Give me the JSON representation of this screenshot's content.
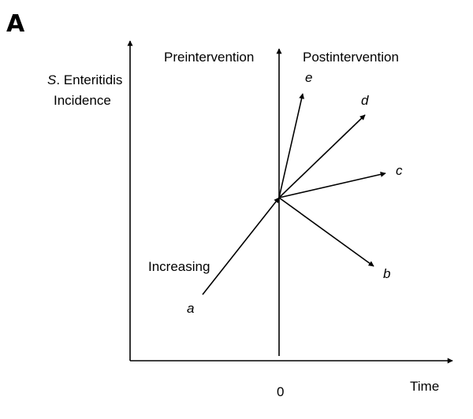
{
  "panel_label": "A",
  "y_axis_title": {
    "italic_part": "S",
    "rest_line1": ". Enteritidis",
    "line2": "Incidence"
  },
  "x_axis_title": "Time",
  "origin_tick_label": "0",
  "pre_label": "Preintervention",
  "post_label": "Postintervention",
  "increasing_label": "Increasing",
  "trend_labels": {
    "a": "a",
    "b": "b",
    "c": "c",
    "d": "d",
    "e": "e"
  }
}
